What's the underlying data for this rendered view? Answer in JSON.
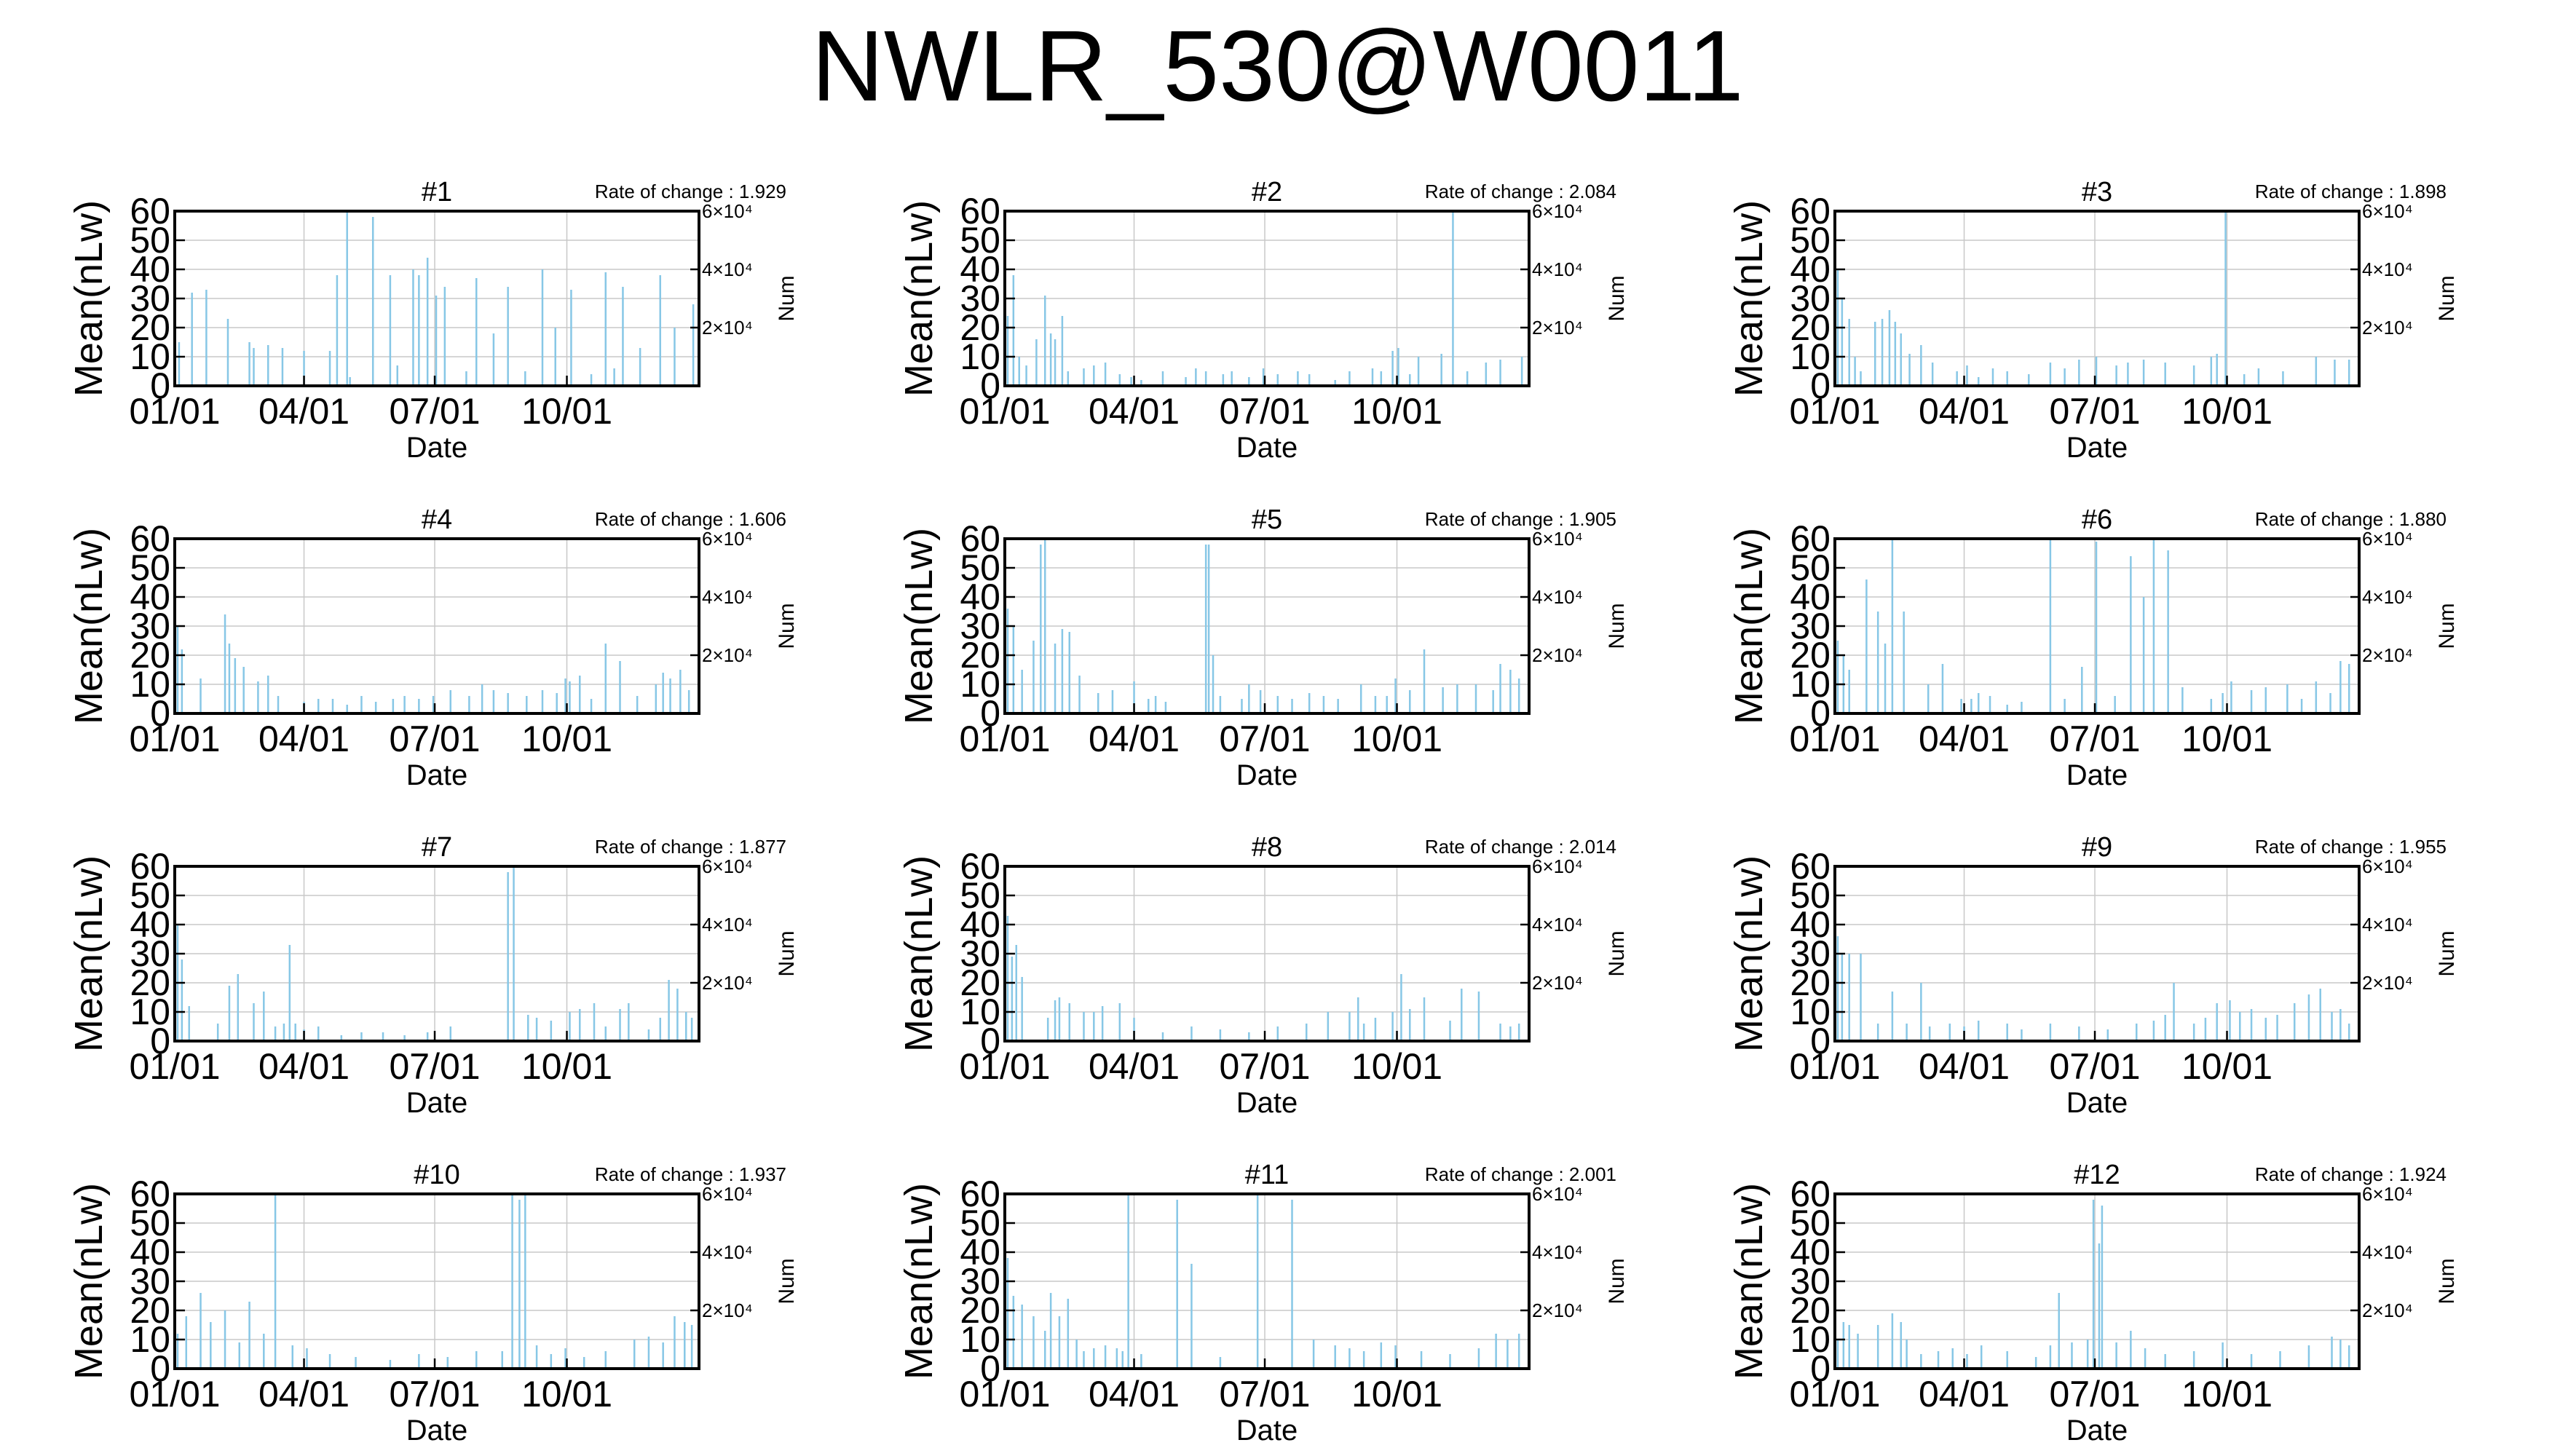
{
  "page": {
    "title": "NWLR_530@W0011"
  },
  "chart_data": [
    {
      "type": "bar",
      "title": "#1",
      "annotation": "Rate of change : 1.929",
      "xlabel": "Date",
      "ylabel": "Mean(nLw)",
      "y2label": "Num",
      "ylim": [
        0,
        60
      ],
      "yticks": [
        "0",
        "10",
        "20",
        "30",
        "40",
        "50",
        "60"
      ],
      "xticks": [
        "01/01",
        "04/01",
        "07/01",
        "10/01"
      ],
      "xtick_days": [
        0,
        90,
        181,
        273
      ],
      "y2ticks": [
        "2×10⁴",
        "4×10⁴",
        "6×10⁴"
      ],
      "y2tick_values": [
        20,
        40,
        60
      ],
      "series_color": "#87c7e6",
      "grid": true,
      "day": [
        3,
        12,
        22,
        37,
        52,
        55,
        65,
        75,
        90,
        108,
        113,
        120,
        122,
        138,
        150,
        155,
        166,
        170,
        176,
        182,
        188,
        203,
        210,
        222,
        232,
        244,
        256,
        265,
        276,
        290,
        300,
        306,
        312,
        324,
        338,
        348,
        361
      ],
      "value": [
        15,
        32,
        33,
        23,
        15,
        13,
        14,
        13,
        12,
        12,
        38,
        60,
        3,
        58,
        38,
        7,
        40,
        38,
        44,
        31,
        34,
        5,
        37,
        18,
        34,
        5,
        40,
        20,
        33,
        4,
        39,
        6,
        34,
        13,
        38,
        20,
        28
      ]
    },
    {
      "type": "bar",
      "title": "#2",
      "annotation": "Rate of change : 2.084",
      "xlabel": "Date",
      "ylabel": "Mean(nLw)",
      "y2label": "Num",
      "ylim": [
        0,
        60
      ],
      "yticks": [
        "0",
        "10",
        "20",
        "30",
        "40",
        "50",
        "60"
      ],
      "xticks": [
        "01/01",
        "04/01",
        "07/01",
        "10/01"
      ],
      "xtick_days": [
        0,
        90,
        181,
        273
      ],
      "y2ticks": [
        "2×10⁴",
        "4×10⁴",
        "6×10⁴"
      ],
      "y2tick_values": [
        20,
        40,
        60
      ],
      "series_color": "#87c7e6",
      "grid": true,
      "day": [
        2,
        6,
        10,
        15,
        22,
        28,
        32,
        35,
        40,
        44,
        55,
        62,
        70,
        80,
        88,
        95,
        110,
        126,
        133,
        140,
        152,
        158,
        170,
        180,
        190,
        204,
        212,
        230,
        240,
        256,
        262,
        270,
        274,
        282,
        288,
        304,
        312,
        322,
        335,
        345,
        360
      ],
      "value": [
        24,
        38,
        10,
        7,
        16,
        31,
        18,
        16,
        24,
        5,
        6,
        7,
        8,
        4,
        3,
        2,
        5,
        3,
        6,
        5,
        4,
        5,
        3,
        6,
        4,
        5,
        4,
        2,
        5,
        6,
        5,
        12,
        13,
        4,
        10,
        11,
        60,
        5,
        8,
        9,
        10
      ]
    },
    {
      "type": "bar",
      "title": "#3",
      "annotation": "Rate of change : 1.898",
      "xlabel": "Date",
      "ylabel": "Mean(nLw)",
      "y2label": "Num",
      "ylim": [
        0,
        60
      ],
      "yticks": [
        "0",
        "10",
        "20",
        "30",
        "40",
        "50",
        "60"
      ],
      "xticks": [
        "01/01",
        "04/01",
        "07/01",
        "10/01"
      ],
      "xtick_days": [
        0,
        90,
        181,
        273
      ],
      "y2ticks": [
        "2×10⁴",
        "4×10⁴",
        "6×10⁴"
      ],
      "y2tick_values": [
        20,
        40,
        60
      ],
      "series_color": "#87c7e6",
      "grid": true,
      "day": [
        2,
        5,
        10,
        14,
        18,
        28,
        33,
        38,
        42,
        46,
        52,
        60,
        68,
        85,
        92,
        100,
        110,
        120,
        135,
        150,
        160,
        170,
        182,
        196,
        204,
        215,
        230,
        250,
        262,
        266,
        272,
        285,
        295,
        312,
        335,
        348,
        358
      ],
      "value": [
        40,
        30,
        23,
        10,
        5,
        22,
        23,
        26,
        22,
        18,
        11,
        14,
        8,
        5,
        7,
        3,
        6,
        5,
        4,
        8,
        6,
        9,
        10,
        7,
        8,
        9,
        8,
        7,
        10,
        11,
        60,
        4,
        6,
        5,
        10,
        9,
        9
      ]
    },
    {
      "type": "bar",
      "title": "#4",
      "annotation": "Rate of change : 1.606",
      "xlabel": "Date",
      "ylabel": "Mean(nLw)",
      "y2label": "Num",
      "ylim": [
        0,
        60
      ],
      "yticks": [
        "0",
        "10",
        "20",
        "30",
        "40",
        "50",
        "60"
      ],
      "xticks": [
        "01/01",
        "04/01",
        "07/01",
        "10/01"
      ],
      "xtick_days": [
        0,
        90,
        181,
        273
      ],
      "y2ticks": [
        "2×10⁴",
        "4×10⁴",
        "6×10⁴"
      ],
      "y2tick_values": [
        20,
        40,
        60
      ],
      "series_color": "#87c7e6",
      "grid": true,
      "day": [
        2,
        5,
        18,
        35,
        38,
        42,
        48,
        58,
        65,
        72,
        90,
        100,
        110,
        120,
        130,
        140,
        152,
        160,
        170,
        180,
        192,
        205,
        214,
        222,
        232,
        245,
        256,
        266,
        272,
        275,
        282,
        290,
        300,
        310,
        322,
        335,
        340,
        345,
        352,
        358
      ],
      "value": [
        30,
        22,
        12,
        34,
        24,
        19,
        16,
        11,
        13,
        6,
        4,
        5,
        5,
        3,
        6,
        4,
        5,
        6,
        5,
        6,
        8,
        6,
        10,
        8,
        7,
        6,
        8,
        7,
        12,
        11,
        13,
        5,
        24,
        18,
        6,
        10,
        14,
        12,
        15,
        8
      ]
    },
    {
      "type": "bar",
      "title": "#5",
      "annotation": "Rate of change : 1.905",
      "xlabel": "Date",
      "ylabel": "Mean(nLw)",
      "y2label": "Num",
      "ylim": [
        0,
        60
      ],
      "yticks": [
        "0",
        "10",
        "20",
        "30",
        "40",
        "50",
        "60"
      ],
      "xticks": [
        "01/01",
        "04/01",
        "07/01",
        "10/01"
      ],
      "xtick_days": [
        0,
        90,
        181,
        273
      ],
      "y2ticks": [
        "2×10⁴",
        "4×10⁴",
        "6×10⁴"
      ],
      "y2tick_values": [
        20,
        40,
        60
      ],
      "series_color": "#87c7e6",
      "grid": true,
      "day": [
        2,
        6,
        12,
        20,
        25,
        28,
        35,
        40,
        45,
        52,
        65,
        75,
        90,
        100,
        105,
        112,
        140,
        142,
        145,
        150,
        165,
        170,
        178,
        190,
        200,
        212,
        222,
        232,
        248,
        258,
        266,
        272,
        282,
        292,
        305,
        315,
        328,
        340,
        345,
        352,
        358
      ],
      "value": [
        36,
        30,
        15,
        25,
        58,
        60,
        24,
        29,
        28,
        13,
        7,
        8,
        11,
        5,
        6,
        4,
        58,
        58,
        20,
        6,
        5,
        10,
        8,
        6,
        5,
        7,
        6,
        5,
        10,
        6,
        6,
        12,
        8,
        22,
        9,
        10,
        10,
        8,
        17,
        15,
        12
      ]
    },
    {
      "type": "bar",
      "title": "#6",
      "annotation": "Rate of change : 1.880",
      "xlabel": "Date",
      "ylabel": "Mean(nLw)",
      "y2label": "Num",
      "ylim": [
        0,
        60
      ],
      "yticks": [
        "0",
        "10",
        "20",
        "30",
        "40",
        "50",
        "60"
      ],
      "xticks": [
        "01/01",
        "04/01",
        "07/01",
        "10/01"
      ],
      "xtick_days": [
        0,
        90,
        181,
        273
      ],
      "y2ticks": [
        "2×10⁴",
        "4×10⁴",
        "6×10⁴"
      ],
      "y2tick_values": [
        20,
        40,
        60
      ],
      "series_color": "#87c7e6",
      "grid": true,
      "day": [
        2,
        6,
        10,
        22,
        30,
        35,
        40,
        48,
        65,
        75,
        88,
        95,
        100,
        108,
        120,
        130,
        150,
        160,
        172,
        182,
        195,
        206,
        215,
        222,
        232,
        242,
        262,
        270,
        276,
        290,
        300,
        315,
        325,
        335,
        345,
        352,
        358
      ],
      "value": [
        25,
        20,
        15,
        46,
        35,
        24,
        60,
        35,
        10,
        17,
        5,
        5,
        7,
        6,
        3,
        4,
        60,
        5,
        16,
        59,
        6,
        54,
        40,
        60,
        56,
        9,
        5,
        7,
        11,
        8,
        9,
        10,
        5,
        11,
        7,
        18,
        17
      ]
    },
    {
      "type": "bar",
      "title": "#7",
      "annotation": "Rate of change : 1.877",
      "xlabel": "Date",
      "ylabel": "Mean(nLw)",
      "y2label": "Num",
      "ylim": [
        0,
        60
      ],
      "yticks": [
        "0",
        "10",
        "20",
        "30",
        "40",
        "50",
        "60"
      ],
      "xticks": [
        "01/01",
        "04/01",
        "07/01",
        "10/01"
      ],
      "xtick_days": [
        0,
        90,
        181,
        273
      ],
      "y2ticks": [
        "2×10⁴",
        "4×10⁴",
        "6×10⁴"
      ],
      "y2tick_values": [
        20,
        40,
        60
      ],
      "series_color": "#87c7e6",
      "grid": true,
      "day": [
        2,
        5,
        10,
        30,
        38,
        44,
        55,
        62,
        70,
        76,
        80,
        84,
        90,
        100,
        116,
        130,
        145,
        160,
        176,
        192,
        232,
        236,
        246,
        252,
        262,
        275,
        282,
        292,
        300,
        310,
        316,
        330,
        338,
        344,
        350,
        356,
        360
      ],
      "value": [
        40,
        28,
        12,
        6,
        19,
        23,
        13,
        17,
        5,
        6,
        33,
        6,
        4,
        5,
        2,
        3,
        3,
        2,
        3,
        5,
        58,
        60,
        9,
        8,
        7,
        10,
        11,
        13,
        5,
        11,
        13,
        4,
        8,
        21,
        18,
        10,
        8
      ]
    },
    {
      "type": "bar",
      "title": "#8",
      "annotation": "Rate of change : 2.014",
      "xlabel": "Date",
      "ylabel": "Mean(nLw)",
      "y2label": "Num",
      "ylim": [
        0,
        60
      ],
      "yticks": [
        "0",
        "10",
        "20",
        "30",
        "40",
        "50",
        "60"
      ],
      "xticks": [
        "01/01",
        "04/01",
        "07/01",
        "10/01"
      ],
      "xtick_days": [
        0,
        90,
        181,
        273
      ],
      "y2ticks": [
        "2×10⁴",
        "4×10⁴",
        "6×10⁴"
      ],
      "y2tick_values": [
        20,
        40,
        60
      ],
      "series_color": "#87c7e6",
      "grid": true,
      "day": [
        2,
        5,
        8,
        12,
        30,
        35,
        38,
        45,
        55,
        62,
        68,
        80,
        90,
        110,
        130,
        150,
        170,
        190,
        210,
        225,
        240,
        246,
        250,
        258,
        270,
        276,
        282,
        292,
        310,
        318,
        330,
        345,
        352,
        358
      ],
      "value": [
        43,
        29,
        33,
        22,
        8,
        14,
        15,
        13,
        10,
        10,
        12,
        13,
        8,
        3,
        5,
        4,
        3,
        5,
        6,
        10,
        10,
        15,
        6,
        8,
        10,
        23,
        11,
        15,
        7,
        18,
        17,
        6,
        5,
        6
      ]
    },
    {
      "type": "bar",
      "title": "#9",
      "annotation": "Rate of change : 1.955",
      "xlabel": "Date",
      "ylabel": "Mean(nLw)",
      "y2label": "Num",
      "ylim": [
        0,
        60
      ],
      "yticks": [
        "0",
        "10",
        "20",
        "30",
        "40",
        "50",
        "60"
      ],
      "xticks": [
        "01/01",
        "04/01",
        "07/01",
        "10/01"
      ],
      "xtick_days": [
        0,
        90,
        181,
        273
      ],
      "y2ticks": [
        "2×10⁴",
        "4×10⁴",
        "6×10⁴"
      ],
      "y2tick_values": [
        20,
        40,
        60
      ],
      "series_color": "#87c7e6",
      "grid": true,
      "day": [
        2,
        5,
        10,
        18,
        30,
        40,
        50,
        60,
        66,
        80,
        90,
        100,
        120,
        130,
        150,
        170,
        190,
        210,
        222,
        230,
        236,
        250,
        258,
        266,
        275,
        282,
        290,
        300,
        308,
        320,
        330,
        338,
        346,
        352,
        358
      ],
      "value": [
        36,
        30,
        30,
        30,
        6,
        17,
        6,
        20,
        5,
        6,
        5,
        7,
        6,
        4,
        6,
        5,
        4,
        6,
        7,
        9,
        20,
        6,
        8,
        13,
        14,
        10,
        11,
        8,
        9,
        13,
        16,
        18,
        10,
        11,
        6
      ]
    },
    {
      "type": "bar",
      "title": "#10",
      "annotation": "Rate of change : 1.937",
      "xlabel": "Date",
      "ylabel": "Mean(nLw)",
      "y2label": "Num",
      "ylim": [
        0,
        60
      ],
      "yticks": [
        "0",
        "10",
        "20",
        "30",
        "40",
        "50",
        "60"
      ],
      "xticks": [
        "01/01",
        "04/01",
        "07/01",
        "10/01"
      ],
      "xtick_days": [
        0,
        90,
        181,
        273
      ],
      "y2ticks": [
        "2×10⁴",
        "4×10⁴",
        "6×10⁴"
      ],
      "y2tick_values": [
        20,
        40,
        60
      ],
      "series_color": "#87c7e6",
      "grid": true,
      "day": [
        2,
        8,
        18,
        25,
        35,
        45,
        52,
        62,
        70,
        82,
        92,
        108,
        126,
        150,
        170,
        190,
        210,
        228,
        235,
        240,
        244,
        252,
        262,
        272,
        285,
        300,
        320,
        330,
        340,
        348,
        355,
        360
      ],
      "value": [
        12,
        18,
        26,
        16,
        20,
        9,
        23,
        12,
        60,
        8,
        7,
        5,
        4,
        3,
        5,
        4,
        6,
        6,
        60,
        58,
        60,
        8,
        5,
        7,
        4,
        6,
        10,
        11,
        9,
        18,
        16,
        15
      ]
    },
    {
      "type": "bar",
      "title": "#11",
      "annotation": "Rate of change : 2.001",
      "xlabel": "Date",
      "ylabel": "Mean(nLw)",
      "y2label": "Num",
      "ylim": [
        0,
        60
      ],
      "yticks": [
        "0",
        "10",
        "20",
        "30",
        "40",
        "50",
        "60"
      ],
      "xticks": [
        "01/01",
        "04/01",
        "07/01",
        "10/01"
      ],
      "xtick_days": [
        0,
        90,
        181,
        273
      ],
      "y2ticks": [
        "2×10⁴",
        "4×10⁴",
        "6×10⁴"
      ],
      "y2tick_values": [
        20,
        40,
        60
      ],
      "series_color": "#87c7e6",
      "grid": true,
      "day": [
        2,
        6,
        12,
        20,
        28,
        32,
        38,
        44,
        50,
        55,
        62,
        70,
        78,
        82,
        86,
        95,
        120,
        130,
        150,
        176,
        200,
        215,
        230,
        240,
        250,
        262,
        272,
        290,
        310,
        330,
        342,
        350,
        358
      ],
      "value": [
        38,
        25,
        22,
        18,
        13,
        26,
        18,
        24,
        10,
        6,
        7,
        8,
        7,
        6,
        60,
        5,
        58,
        36,
        4,
        60,
        58,
        10,
        8,
        7,
        6,
        9,
        8,
        6,
        5,
        7,
        12,
        10,
        12
      ]
    },
    {
      "type": "bar",
      "title": "#12",
      "annotation": "Rate of change : 1.924",
      "xlabel": "Date",
      "ylabel": "Mean(nLw)",
      "y2label": "Num",
      "ylim": [
        0,
        60
      ],
      "yticks": [
        "0",
        "10",
        "20",
        "30",
        "40",
        "50",
        "60"
      ],
      "xticks": [
        "01/01",
        "04/01",
        "07/01",
        "10/01"
      ],
      "xtick_days": [
        0,
        90,
        181,
        273
      ],
      "y2ticks": [
        "2×10⁴",
        "4×10⁴",
        "6×10⁴"
      ],
      "y2tick_values": [
        20,
        40,
        60
      ],
      "series_color": "#87c7e6",
      "grid": true,
      "day": [
        2,
        6,
        10,
        16,
        30,
        40,
        46,
        50,
        60,
        72,
        82,
        92,
        102,
        120,
        140,
        150,
        156,
        165,
        176,
        180,
        184,
        186,
        196,
        206,
        216,
        230,
        250,
        270,
        290,
        310,
        330,
        346,
        352,
        358
      ],
      "value": [
        10,
        16,
        15,
        12,
        15,
        19,
        16,
        10,
        5,
        6,
        7,
        5,
        8,
        6,
        4,
        8,
        26,
        9,
        10,
        58,
        43,
        56,
        9,
        13,
        7,
        5,
        6,
        9,
        5,
        6,
        8,
        11,
        10,
        8
      ]
    }
  ]
}
